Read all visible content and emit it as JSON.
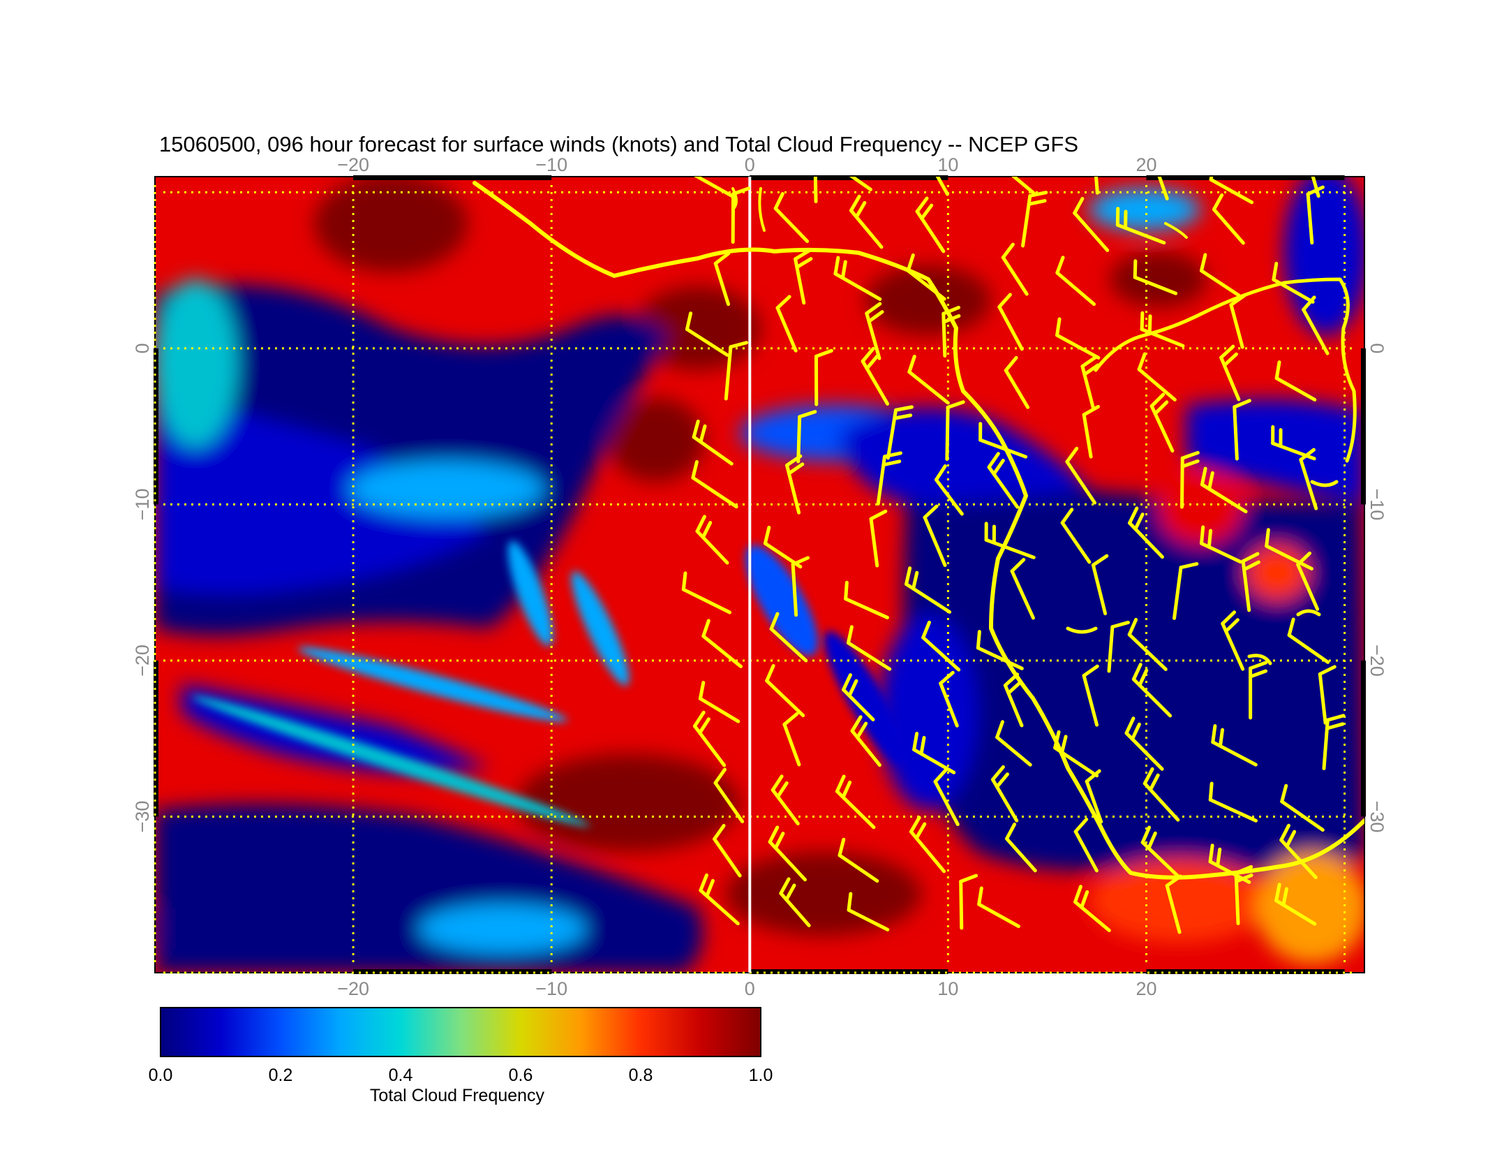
{
  "title": "15060500, 096 hour forecast for surface winds (knots) and Total Cloud Frequency -- NCEP GFS",
  "map": {
    "lon_range": [
      -30,
      31
    ],
    "lat_range": [
      -40,
      11
    ],
    "lon_ticks": [
      "−20",
      "−10",
      "0",
      "10",
      "20"
    ],
    "lon_tick_values": [
      -20,
      -10,
      0,
      10,
      20
    ],
    "lat_ticks": [
      "0",
      "−10",
      "−20",
      "−30"
    ],
    "lat_tick_values": [
      0,
      -10,
      -20,
      -30
    ],
    "gridlines": "dotted",
    "colors": {
      "coastline": "#ffff00",
      "wind_barbs": "#ffff00",
      "gridline": "#ffff00",
      "meridian_0": "#ffffff"
    }
  },
  "colorbar": {
    "label": "Total Cloud Frequency",
    "ticks": [
      "0.0",
      "0.2",
      "0.4",
      "0.6",
      "0.8",
      "1.0"
    ],
    "tick_values": [
      0.0,
      0.2,
      0.4,
      0.6,
      0.8,
      1.0
    ],
    "colors": [
      "#00007f",
      "#0000cd",
      "#0050ff",
      "#00a8ff",
      "#00d8d8",
      "#7fe07f",
      "#d8d800",
      "#ff9a00",
      "#ff3000",
      "#c80000",
      "#7f0000"
    ]
  }
}
